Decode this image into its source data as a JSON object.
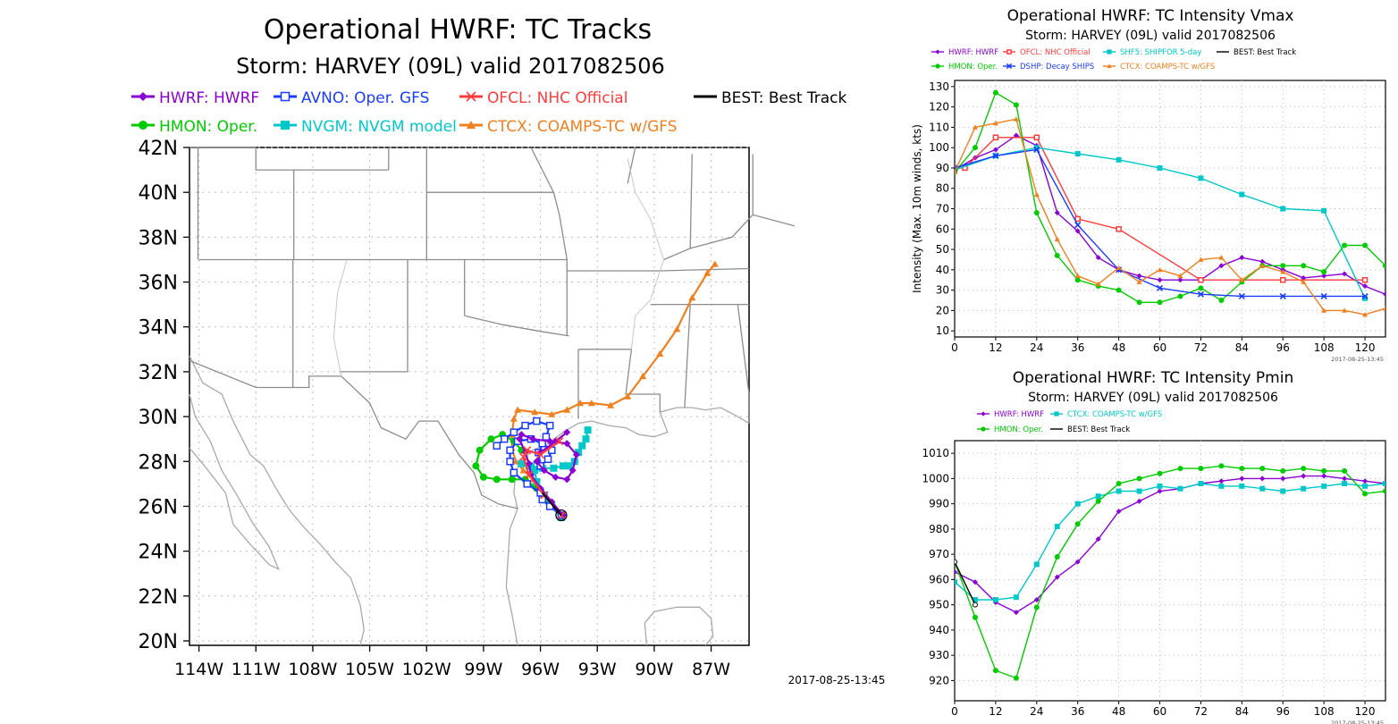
{
  "track_panel": {
    "title": "Operational HWRF: TC Tracks",
    "subtitle": "Storm: HARVEY (09L) valid 2017082506",
    "timestamp": "2017-08-25-13:45",
    "colors": {
      "land": "#ffffff",
      "coast": "#a9a9a9",
      "border": "#8c8c8c",
      "grid": "#bbbbbb"
    },
    "legend": [
      {
        "label": "HWRF: HWRF",
        "color": "#8a00d4",
        "marker": "diamond"
      },
      {
        "label": "AVNO: Oper. GFS",
        "color": "#1a3cff",
        "marker": "open-square"
      },
      {
        "label": "OFCL: NHC Official",
        "color": "#ff3b3b",
        "marker": "x"
      },
      {
        "label": "BEST: Best Track",
        "color": "#000000",
        "marker": "none"
      },
      {
        "label": "HMON: Oper.",
        "color": "#00cc00",
        "marker": "circle"
      },
      {
        "label": "NVGM: NVGM model",
        "color": "#00c8c8",
        "marker": "square"
      },
      {
        "label": "CTCX: COAMPS-TC w/GFS",
        "color": "#f07f1e",
        "marker": "triangle"
      }
    ]
  },
  "chart_data": [
    {
      "type": "scatter",
      "title": "Operational HWRF: TC Tracks",
      "subtitle": "Storm: HARVEY (09L) valid 2017082506",
      "xlabel": "",
      "ylabel": "",
      "xlim": [
        -114.5,
        -85
      ],
      "ylim": [
        19.8,
        42
      ],
      "x_ticks": [
        "114W",
        "111W",
        "108W",
        "105W",
        "102W",
        "99W",
        "96W",
        "93W",
        "90W",
        "87W"
      ],
      "x_tick_values": [
        -114,
        -111,
        -108,
        -105,
        -102,
        -99,
        -96,
        -93,
        -90,
        -87
      ],
      "y_ticks": [
        "20N",
        "22N",
        "24N",
        "26N",
        "28N",
        "30N",
        "32N",
        "34N",
        "36N",
        "38N",
        "40N",
        "42N"
      ],
      "y_tick_values": [
        20,
        22,
        24,
        26,
        28,
        30,
        32,
        34,
        36,
        38,
        40,
        42
      ],
      "grid": true,
      "series": [
        {
          "name": "HWRF: HWRF",
          "lon": [
            -94.8,
            -95.4,
            -96.0,
            -96.5,
            -96.6,
            -96.8,
            -97.1,
            -97.0,
            -96.4,
            -95.5,
            -94.6,
            -94.1,
            -94.3,
            -94.6,
            -95.2,
            -95.8,
            -96.2,
            -96.0,
            -95.2,
            -94.6
          ],
          "lat": [
            25.6,
            26.2,
            26.8,
            27.4,
            27.9,
            28.4,
            29.0,
            29.2,
            29.0,
            28.9,
            28.8,
            28.3,
            27.6,
            27.2,
            27.3,
            27.6,
            28.0,
            28.4,
            28.9,
            29.3
          ]
        },
        {
          "name": "AVNO: Oper. GFS",
          "lon": [
            -94.9,
            -95.5,
            -95.9,
            -96.0,
            -96.7,
            -97.4,
            -97.6,
            -97.6,
            -97.2,
            -96.5,
            -95.9,
            -95.4,
            -95.6,
            -96.0,
            -96.1,
            -95.7,
            -95.5,
            -96.2,
            -96.8,
            -97.4,
            -97.9,
            -98.3
          ],
          "lat": [
            25.6,
            26.0,
            26.3,
            26.6,
            27.0,
            27.5,
            28.0,
            28.5,
            28.9,
            29.0,
            28.8,
            28.5,
            28.1,
            27.8,
            28.4,
            29.1,
            29.6,
            29.8,
            29.6,
            29.3,
            29.0,
            28.7
          ]
        },
        {
          "name": "OFCL: NHC Official",
          "lon": [
            -94.9,
            -95.8,
            -96.6,
            -96.9,
            -96.7,
            -96.0,
            -95.0
          ],
          "lat": [
            25.6,
            26.5,
            27.4,
            28.2,
            28.5,
            28.3,
            28.9
          ]
        },
        {
          "name": "BEST: Best Track",
          "lon": [
            -94.9,
            -95.4,
            -95.9
          ],
          "lat": [
            25.6,
            26.1,
            26.6
          ]
        },
        {
          "name": "HMON: Oper.",
          "lon": [
            -94.9,
            -95.6,
            -96.2,
            -96.8,
            -97.5,
            -98.3,
            -99.0,
            -99.4,
            -99.2,
            -98.6,
            -98.0,
            -97.4,
            -97.0
          ],
          "lat": [
            25.6,
            26.2,
            26.8,
            27.2,
            27.2,
            27.2,
            27.3,
            27.8,
            28.5,
            29.0,
            29.2,
            28.9,
            28.5
          ]
        },
        {
          "name": "NVGM: NVGM model",
          "lon": [
            -94.9,
            -95.4,
            -95.8,
            -96.2,
            -96.3,
            -96.6,
            -97.0,
            -96.5,
            -95.9,
            -95.3,
            -94.8,
            -94.5,
            -94.2,
            -94.0,
            -93.8,
            -93.6,
            -93.5
          ],
          "lat": [
            25.5,
            26.0,
            26.5,
            27.1,
            27.6,
            27.8,
            27.9,
            27.8,
            27.7,
            27.7,
            27.8,
            27.8,
            28.0,
            28.4,
            28.7,
            29.0,
            29.4
          ]
        },
        {
          "name": "CTCX: COAMPS-TC w/GFS",
          "lon": [
            -94.9,
            -95.5,
            -96.0,
            -96.4,
            -96.9,
            -97.3,
            -97.5,
            -97.5,
            -97.4,
            -97.2,
            -96.3,
            -95.4,
            -94.6,
            -93.9,
            -93.3,
            -92.3,
            -91.4,
            -90.6,
            -89.7,
            -88.8,
            -88.0,
            -87.2,
            -86.8
          ],
          "lat": [
            25.6,
            26.1,
            26.6,
            27.2,
            27.6,
            28.0,
            28.6,
            29.2,
            29.9,
            30.3,
            30.2,
            30.1,
            30.3,
            30.6,
            30.6,
            30.5,
            30.9,
            31.8,
            32.8,
            33.9,
            35.3,
            36.4,
            36.8
          ]
        }
      ]
    },
    {
      "type": "line",
      "title": "Operational HWRF: TC Intensity Vmax",
      "subtitle": "Storm: HARVEY (09L) valid 2017082506",
      "ylabel": "Intensity (Max. 10m winds, kts)",
      "timestamp": "2017-08-25-13:45",
      "xlim": [
        0,
        126
      ],
      "ylim": [
        7,
        133
      ],
      "x_ticks": [
        0,
        12,
        24,
        36,
        48,
        60,
        72,
        84,
        96,
        108,
        120
      ],
      "y_ticks": [
        10,
        20,
        30,
        40,
        50,
        60,
        70,
        80,
        90,
        100,
        110,
        120,
        130
      ],
      "grid": true,
      "legend_position": "top",
      "series": [
        {
          "name": "HWRF: HWRF",
          "color": "#8a00d4",
          "marker": "diamond",
          "x": [
            0,
            6,
            12,
            18,
            24,
            30,
            36,
            42,
            48,
            54,
            60,
            66,
            72,
            78,
            84,
            90,
            96,
            102,
            108,
            114,
            120,
            126
          ],
          "y": [
            89,
            95,
            99,
            106,
            101,
            68,
            59,
            46,
            40,
            37,
            35,
            35,
            35,
            42,
            46,
            44,
            40,
            36,
            37,
            38,
            32,
            28
          ]
        },
        {
          "name": "OFCL: NHC Official",
          "color": "#ff3b3b",
          "marker": "open-square",
          "x": [
            0,
            3,
            12,
            24,
            36,
            48,
            72,
            96,
            120
          ],
          "y": [
            90,
            90,
            105,
            105,
            65,
            60,
            35,
            35,
            35
          ]
        },
        {
          "name": "SHF5: SHIPFOR 5-day",
          "color": "#00c8c8",
          "marker": "square",
          "x": [
            0,
            12,
            24,
            36,
            48,
            60,
            72,
            84,
            96,
            108,
            120
          ],
          "y": [
            89,
            96,
            100,
            97,
            94,
            90,
            85,
            77,
            70,
            69,
            26
          ]
        },
        {
          "name": "BEST: Best Track",
          "color": "#000000",
          "marker": "none",
          "x": [
            0
          ],
          "y": [
            89
          ]
        },
        {
          "name": "HMON: Oper.",
          "color": "#00cc00",
          "marker": "circle",
          "x": [
            0,
            6,
            12,
            18,
            24,
            30,
            36,
            42,
            48,
            54,
            60,
            66,
            72,
            78,
            84,
            90,
            96,
            102,
            108,
            114,
            120,
            126
          ],
          "y": [
            88,
            100,
            127,
            121,
            68,
            47,
            35,
            32,
            30,
            24,
            24,
            27,
            31,
            25,
            34,
            42,
            42,
            42,
            39,
            52,
            52,
            42
          ]
        },
        {
          "name": "DSHP: Decay SHIPS",
          "color": "#1a3cff",
          "marker": "x",
          "x": [
            0,
            12,
            24,
            36,
            48,
            60,
            72,
            84,
            96,
            108,
            120
          ],
          "y": [
            90,
            96,
            99,
            62,
            40,
            31,
            28,
            27,
            27,
            27,
            27
          ]
        },
        {
          "name": "CTCX: COAMPS-TC w/GFS",
          "color": "#f07f1e",
          "marker": "triangle",
          "x": [
            0,
            6,
            12,
            18,
            24,
            30,
            36,
            42,
            48,
            54,
            60,
            66,
            72,
            78,
            84,
            90,
            96,
            102,
            108,
            114,
            120,
            126
          ],
          "y": [
            88,
            110,
            112,
            114,
            77,
            55,
            37,
            33,
            41,
            34,
            40,
            37,
            45,
            46,
            35,
            42,
            39,
            34,
            20,
            20,
            18,
            21
          ]
        }
      ]
    },
    {
      "type": "line",
      "title": "Operational HWRF: TC Intensity Pmin",
      "subtitle": "Storm: HARVEY (09L) valid 2017082506",
      "ylabel": "",
      "timestamp": "2017-08-25-13:45",
      "xlim": [
        0,
        126
      ],
      "ylim": [
        912,
        1015
      ],
      "x_ticks": [
        0,
        12,
        24,
        36,
        48,
        60,
        72,
        84,
        96,
        108,
        120
      ],
      "y_ticks": [
        920,
        930,
        940,
        950,
        960,
        970,
        980,
        990,
        1000,
        1010
      ],
      "grid": true,
      "legend_position": "top",
      "series": [
        {
          "name": "HWRF: HWRF",
          "color": "#8a00d4",
          "marker": "diamond",
          "x": [
            0,
            6,
            12,
            18,
            24,
            30,
            36,
            42,
            48,
            54,
            60,
            66,
            72,
            78,
            84,
            90,
            96,
            102,
            108,
            114,
            120,
            126
          ],
          "y": [
            963,
            959,
            951,
            947,
            952,
            961,
            967,
            976,
            987,
            991,
            995,
            996,
            998,
            999,
            1000,
            1000,
            1000,
            1001,
            1001,
            1000,
            999,
            998
          ]
        },
        {
          "name": "CTCX: COAMPS-TC w/GFS",
          "color": "#00c8c8",
          "marker": "square",
          "x": [
            0,
            6,
            12,
            18,
            24,
            30,
            36,
            42,
            48,
            54,
            60,
            66,
            72,
            78,
            84,
            90,
            96,
            102,
            108,
            114,
            120,
            126
          ],
          "y": [
            959,
            952,
            952,
            953,
            966,
            981,
            990,
            993,
            995,
            995,
            997,
            996,
            998,
            997,
            997,
            996,
            995,
            996,
            997,
            998,
            997,
            998
          ]
        },
        {
          "name": "HMON: Oper.",
          "color": "#00cc00",
          "marker": "circle",
          "x": [
            0,
            6,
            12,
            18,
            24,
            30,
            36,
            42,
            48,
            54,
            60,
            66,
            72,
            78,
            84,
            90,
            96,
            102,
            108,
            114,
            120,
            126
          ],
          "y": [
            967,
            945,
            924,
            921,
            949,
            969,
            982,
            991,
            998,
            1000,
            1002,
            1004,
            1004,
            1005,
            1004,
            1004,
            1003,
            1004,
            1003,
            1003,
            994,
            995
          ]
        },
        {
          "name": "BEST: Best Track",
          "color": "#000000",
          "marker": "none",
          "x": [
            0,
            6
          ],
          "y": [
            967,
            950
          ]
        }
      ]
    }
  ]
}
